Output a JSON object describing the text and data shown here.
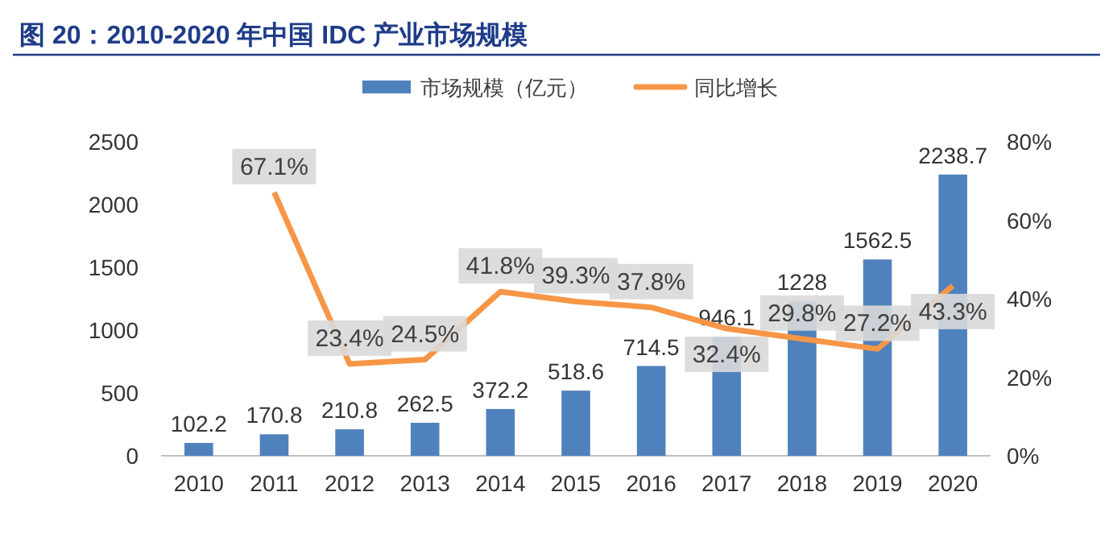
{
  "chart_data": {
    "type": "bar",
    "title": "图 20：2010-2020 年中国 IDC 产业市场规模",
    "categories": [
      "2010",
      "2011",
      "2012",
      "2013",
      "2014",
      "2015",
      "2016",
      "2017",
      "2018",
      "2019",
      "2020"
    ],
    "series": [
      {
        "name": "市场规模（亿元）",
        "type": "bar",
        "color": "#4f81bd",
        "values": [
          102.2,
          170.8,
          210.8,
          262.5,
          372.2,
          518.6,
          714.5,
          946.1,
          1228,
          1562.5,
          2238.7
        ]
      },
      {
        "name": "同比增长",
        "type": "line",
        "axis": "y2",
        "color": "#f79646",
        "values": [
          null,
          67.1,
          23.4,
          24.5,
          41.8,
          39.3,
          37.8,
          32.4,
          29.8,
          27.2,
          43.3
        ],
        "value_labels": [
          null,
          "67.1%",
          "23.4%",
          "24.5%",
          "41.8%",
          "39.3%",
          "37.8%",
          "32.4%",
          "29.8%",
          "27.2%",
          "43.3%"
        ]
      }
    ],
    "data_labels": true,
    "ylim": [
      0,
      2500
    ],
    "yticks": [
      0,
      500,
      1000,
      1500,
      2000,
      2500
    ],
    "y2lim": [
      0,
      80
    ],
    "y2ticks": [
      {
        "value": 0,
        "label": "0%"
      },
      {
        "value": 20,
        "label": "20%"
      },
      {
        "value": 40,
        "label": "40%"
      },
      {
        "value": 60,
        "label": "60%"
      },
      {
        "value": 80,
        "label": "80%"
      }
    ],
    "legend": "top",
    "grid": false
  }
}
